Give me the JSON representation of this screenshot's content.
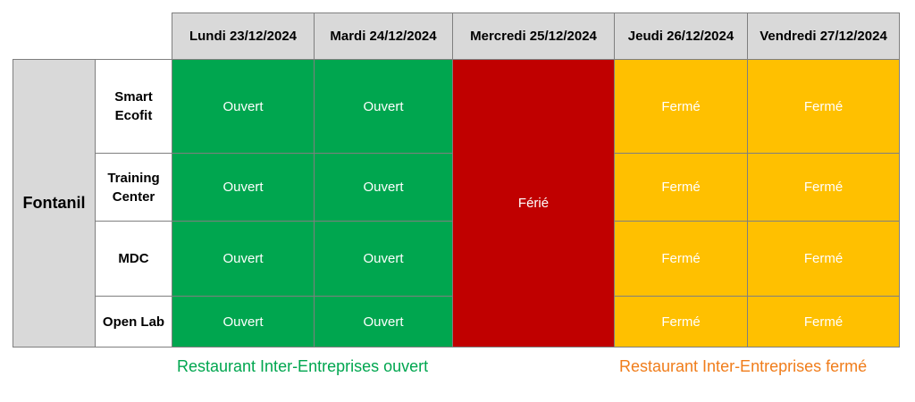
{
  "schedule": {
    "days": [
      "Lundi 23/12/2024",
      "Mardi 24/12/2024",
      "Mercredi 25/12/2024",
      "Jeudi 26/12/2024",
      "Vendredi 27/12/2024"
    ],
    "site": "Fontanil",
    "buildings": [
      "Smart Ecofit",
      "Training Center",
      "MDC",
      "Open Lab"
    ],
    "status_open": "Ouvert",
    "status_holiday": "Férié",
    "status_closed": "Fermé"
  },
  "legend": {
    "open": "Restaurant Inter-Entreprises ouvert",
    "closed": "Restaurant Inter-Entreprises fermé"
  },
  "colors": {
    "open": "#00a64f",
    "holiday": "#c00000",
    "closed": "#ffc000",
    "legend_closed_text": "#f07d1b",
    "header_bg": "#d9d9d9"
  }
}
